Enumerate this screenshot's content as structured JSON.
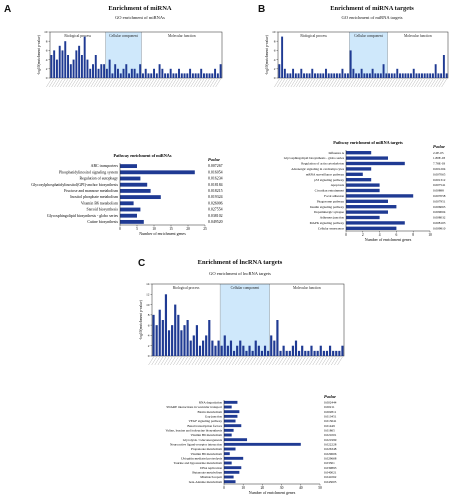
{
  "panels": {
    "A": {
      "letter": "A",
      "title": "Enrichment of miRNA"
    },
    "B": {
      "letter": "B",
      "title": "Enrichment of miRNA targets"
    },
    "C": {
      "letter": "C",
      "title": "Enrichment of lncRNA targets"
    }
  },
  "colors": {
    "bar": "#1f3a93",
    "region": "#cfe8fb",
    "axis": "#222222"
  },
  "chart_data": [
    {
      "id": "A-go",
      "type": "bar",
      "title": "GO enrichment of miRNAs",
      "ylabel": "-log10(enrichment p-value)",
      "ylim": [
        0,
        10
      ],
      "ticks": [
        0,
        2,
        4,
        6,
        8,
        10
      ],
      "regions": [
        {
          "name": "Biological process",
          "start": 0,
          "end": 20
        },
        {
          "name": "Cellular component",
          "start": 20,
          "end": 33
        },
        {
          "name": "Molecular function",
          "start": 33,
          "end": 62
        }
      ],
      "values": [
        5,
        6,
        4,
        7,
        6,
        8,
        5,
        3,
        4,
        6,
        7,
        5,
        9,
        4,
        2,
        3,
        5,
        2,
        3,
        3,
        2,
        4,
        1,
        3,
        2,
        1,
        2,
        3,
        1,
        2,
        2,
        1,
        3,
        1,
        2,
        1,
        1,
        2,
        1,
        3,
        2,
        1,
        1,
        2,
        1,
        1,
        2,
        1,
        1,
        1,
        2,
        1,
        1,
        1,
        2,
        1,
        1,
        1,
        1,
        2,
        1,
        3
      ]
    },
    {
      "id": "A-path",
      "type": "bar",
      "orientation": "horizontal",
      "title": "Pathway enrichment of miRNAs",
      "xlabel": "Number of enrichment genes",
      "xlim": [
        0,
        25
      ],
      "ticks": [
        0,
        5,
        10,
        15,
        20,
        25
      ],
      "pvalue_header": "Pvalue",
      "categories": [
        "ABC transporters",
        "Phosphatidylinositol signaling system",
        "Regulation of autophagy",
        "Glycosylphosphatidylinositol(GPI)-anchor biosynthesis",
        "Fructose and mannose metabolism",
        "Inositol phosphate metabolism",
        "Vitamin B6 metabolism",
        "Steroid biosynthesis",
        "Glycosphingolipid biosynthesis - globo series",
        "Cutine biosynthesis"
      ],
      "values": [
        5,
        22,
        6,
        8,
        9,
        12,
        4,
        6,
        5,
        7
      ],
      "pvalues": [
        "0.007267",
        "0.016054",
        "0.016234",
        "0.018184",
        "0.018215",
        "0.019324",
        "0.026006",
        "0.027554",
        "0.038102",
        "0.049520"
      ]
    },
    {
      "id": "B-go",
      "type": "bar",
      "title": "GO enrichment of miRNA targets",
      "ylabel": "-log10(enrichment p-value)",
      "ylim": [
        0,
        10
      ],
      "ticks": [
        0,
        2,
        4,
        6,
        8,
        10
      ],
      "regions": [
        {
          "name": "Biological process",
          "start": 0,
          "end": 26
        },
        {
          "name": "Cellular component",
          "start": 26,
          "end": 40
        },
        {
          "name": "Molecular function",
          "start": 40,
          "end": 62
        }
      ],
      "values": [
        3,
        9,
        2,
        1,
        1,
        2,
        1,
        1,
        2,
        1,
        1,
        1,
        2,
        1,
        1,
        1,
        1,
        2,
        1,
        1,
        1,
        1,
        1,
        2,
        1,
        1,
        6,
        2,
        1,
        1,
        2,
        1,
        1,
        1,
        2,
        1,
        1,
        1,
        3,
        1,
        1,
        1,
        1,
        2,
        1,
        1,
        1,
        1,
        1,
        2,
        1,
        1,
        1,
        1,
        1,
        1,
        1,
        3,
        1,
        1,
        5,
        1
      ]
    },
    {
      "id": "B-path",
      "type": "bar",
      "orientation": "horizontal",
      "title": "Pathway enrichment of miRNA targets",
      "xlabel": "Number of enrichment genes",
      "xlim": [
        0,
        10
      ],
      "ticks": [
        0,
        2,
        4,
        6,
        8,
        10
      ],
      "pvalue_header": "Pvalue",
      "categories": [
        "Influenza A",
        "Glycosphingolipid biosynthesis - globo series",
        "Regulation of actin cytoskeleton",
        "Adrenergic signaling in cardiomyocytes",
        "mRNA surveillance pathway",
        "p53 signaling pathway",
        "Apoptosis",
        "Circadian entrainment",
        "Focal adhesion",
        "Phagosome pathway",
        "Insulin signaling pathway",
        "Dopaminergic synapse",
        "Adherens junction",
        "MAPK signaling pathway",
        "Cellular senescence"
      ],
      "values": [
        3,
        5,
        7,
        3,
        2,
        3,
        4,
        4,
        8,
        5,
        6,
        5,
        4,
        7,
        6
      ],
      "pvalues": [
        "2.2E-05",
        "1.80E-03",
        "7.78E-03",
        "0.001204",
        "0.007065",
        "0.001312",
        "0.007541",
        "0.00888",
        "0.007058",
        "0.007951",
        "0.006065",
        "0.009004",
        "0.008032",
        "0.008103",
        "0.009810"
      ]
    },
    {
      "id": "C-go",
      "type": "bar",
      "title": "GO enrichment of lncRNA targets",
      "ylabel": "-log10(enrichment p-value)",
      "ylim": [
        0,
        14
      ],
      "ticks": [
        0,
        2,
        4,
        6,
        8,
        10,
        12,
        14
      ],
      "regions": [
        {
          "name": "Biological process",
          "start": 0,
          "end": 22
        },
        {
          "name": "Cellular component",
          "start": 22,
          "end": 38
        },
        {
          "name": "Molecular function",
          "start": 38,
          "end": 62
        }
      ],
      "values": [
        8,
        6,
        9,
        7,
        12,
        5,
        6,
        10,
        8,
        5,
        6,
        7,
        3,
        4,
        6,
        2,
        3,
        4,
        7,
        3,
        2,
        3,
        2,
        4,
        2,
        3,
        1,
        2,
        3,
        2,
        1,
        2,
        1,
        3,
        2,
        1,
        2,
        1,
        4,
        3,
        7,
        1,
        2,
        1,
        1,
        2,
        3,
        1,
        2,
        1,
        1,
        2,
        1,
        1,
        2,
        1,
        1,
        2,
        1,
        1,
        1,
        2
      ]
    },
    {
      "id": "C-path",
      "type": "bar",
      "orientation": "horizontal",
      "title": "",
      "xlabel": "Number of enrichment genes",
      "xlim": [
        0,
        50
      ],
      "ticks": [
        0,
        10,
        20,
        30,
        40,
        50
      ],
      "pvalue_header": "Pvalue",
      "categories": [
        "RNA degradation",
        "SNARE interactions in vesicular transport",
        "Biotin metabolism",
        "Gap junction",
        "VEGF signaling pathway",
        "Basal transcription factors",
        "Valine, leucine and isoleucine biosynthesis",
        "Vitamin B6 metabolism",
        "Glycolysis / Gluconeogenesis",
        "Neuroactive ligand-receptor interaction",
        "Propanoate metabolism",
        "Vitamin B6 metabolism",
        "Ubiquitin mediated proteolysis",
        "Taurine and hypotaurine metabolism",
        "DNA replication",
        "Butanoate metabolism",
        "Mismatch repair",
        "beta-Alanine metabolism"
      ],
      "values": [
        7,
        4,
        8,
        7,
        6,
        9,
        5,
        4,
        12,
        40,
        6,
        3,
        10,
        4,
        9,
        8,
        5,
        6
      ],
      "pvalues": [
        "0.002444",
        "0.00211",
        "0.002811",
        "0.013451",
        "0.013641",
        "0.01449",
        "0.01865",
        "0.021001",
        "0.021999",
        "0.022228",
        "0.026348",
        "0.029606",
        "0.029668",
        "0.03301",
        "0.039893",
        "0.040021",
        "0.041062",
        "0.043005"
      ]
    }
  ]
}
